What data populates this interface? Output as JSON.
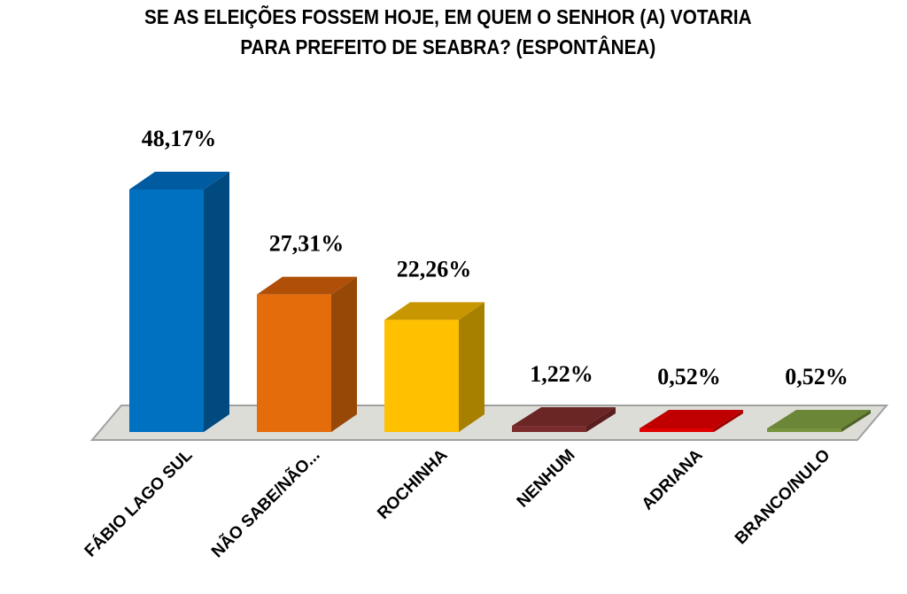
{
  "chart_data": {
    "type": "bar",
    "title_lines": [
      "SE AS ELEIÇÕES FOSSEM HOJE, EM QUEM O SENHOR (A) VOTARIA",
      "PARA PREFEITO DE SEABRA? (ESPONTÂNEA)"
    ],
    "categories": [
      "FÁBIO LAGO SUL",
      "NÃO SABE/NÃO...",
      "ROCHINHA",
      "NENHUM",
      "ADRIANA",
      "BRANCO/NULO"
    ],
    "values": [
      48.17,
      27.31,
      22.26,
      1.22,
      0.52,
      0.52
    ],
    "data_labels": [
      "48,17%",
      "27,31%",
      "22,26%",
      "1,22%",
      "0,52%",
      "0,52%"
    ],
    "colors": [
      "#0070C0",
      "#E46C0A",
      "#FFC000",
      "#7B2C2C",
      "#E00000",
      "#77933C"
    ],
    "side_colors": [
      "#004A80",
      "#974806",
      "#A88000",
      "#5A1E1E",
      "#A00000",
      "#4F6228"
    ],
    "top_colors": [
      "#005BA0",
      "#B05008",
      "#C89600",
      "#6A2525",
      "#C00000",
      "#6B8636"
    ],
    "xlabel": "",
    "ylabel": "",
    "ylim": [
      0,
      50
    ],
    "grid": false,
    "legend": "none"
  }
}
